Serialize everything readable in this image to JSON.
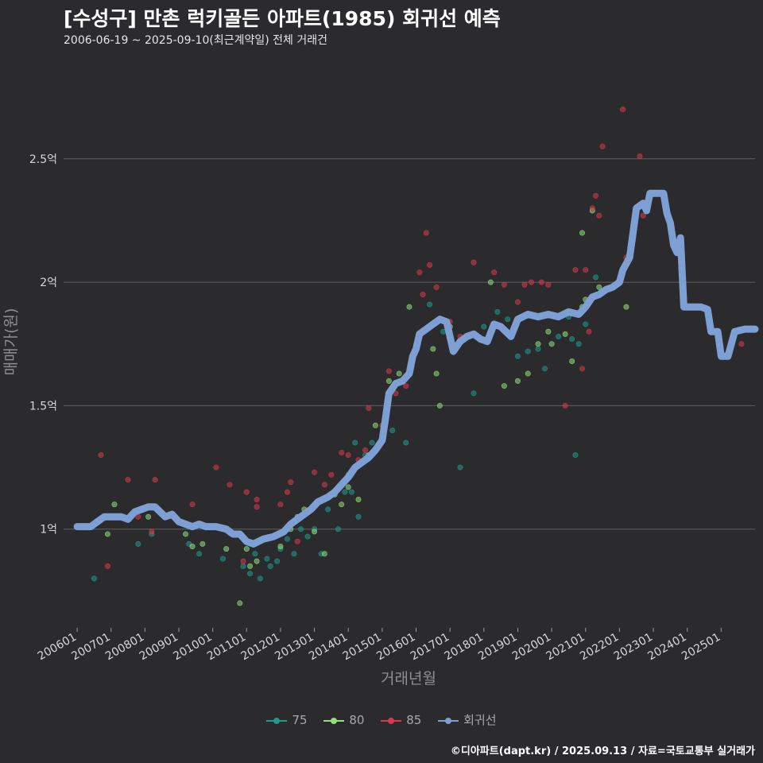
{
  "header": {
    "title": "[수성구] 만촌 럭키골든 아파트(1985) 회귀선 예측",
    "subtitle": "2006-06-19 ~ 2025-09-10(최근계약일) 전체 거래건"
  },
  "caption": "©디아파트(dapt.kr) / 2025.09.13 / 자료=국토교통부 실거래가",
  "colors": {
    "background": "#2b2a2d",
    "grid": "#5f5f5f",
    "s75": "#1f9a8f",
    "s80": "#8fe07a",
    "s85": "#d9394c",
    "regression": "#7d9fd3"
  },
  "chart_data": {
    "type": "scatter",
    "xlabel": "거래년월",
    "ylabel": "매매가(원)",
    "x_start": "2006-01",
    "x_ticks": [
      "200601",
      "200701",
      "200801",
      "200901",
      "201001",
      "201101",
      "201201",
      "201301",
      "201401",
      "201501",
      "201601",
      "201701",
      "201801",
      "201901",
      "202001",
      "202101",
      "202201",
      "202301",
      "202401",
      "202501"
    ],
    "y_ticks": [
      {
        "value": 1.0,
        "label": "1억"
      },
      {
        "value": 1.5,
        "label": "1.5억"
      },
      {
        "value": 2.0,
        "label": "2억"
      },
      {
        "value": 2.5,
        "label": "2.5억"
      }
    ],
    "ylim": [
      0.6,
      2.95
    ],
    "xlim": [
      2005.6,
      2026.0
    ],
    "grid": true,
    "legend": [
      "75",
      "80",
      "85",
      "회귀선"
    ],
    "legend_position": "bottom",
    "series": [
      {
        "name": "75",
        "points": [
          [
            2006.5,
            0.8
          ],
          [
            2007.8,
            0.94
          ],
          [
            2008.2,
            0.98
          ],
          [
            2009.3,
            0.94
          ],
          [
            2009.6,
            0.9
          ],
          [
            2010.3,
            0.88
          ],
          [
            2010.9,
            0.85
          ],
          [
            2011.1,
            0.82
          ],
          [
            2011.25,
            0.9
          ],
          [
            2011.4,
            0.8
          ],
          [
            2011.6,
            0.88
          ],
          [
            2011.7,
            0.85
          ],
          [
            2011.9,
            0.87
          ],
          [
            2012.0,
            0.92
          ],
          [
            2012.2,
            0.96
          ],
          [
            2012.4,
            0.9
          ],
          [
            2012.6,
            1.0
          ],
          [
            2012.8,
            0.97
          ],
          [
            2013.0,
            1.0
          ],
          [
            2013.2,
            0.9
          ],
          [
            2013.4,
            1.08
          ],
          [
            2013.7,
            1.0
          ],
          [
            2013.9,
            1.15
          ],
          [
            2014.0,
            1.22
          ],
          [
            2014.1,
            1.15
          ],
          [
            2014.2,
            1.35
          ],
          [
            2014.3,
            1.05
          ],
          [
            2014.5,
            1.3
          ],
          [
            2014.7,
            1.35
          ],
          [
            2015.3,
            1.4
          ],
          [
            2015.7,
            1.35
          ],
          [
            2016.4,
            1.91
          ],
          [
            2016.8,
            1.8
          ],
          [
            2017.3,
            1.25
          ],
          [
            2017.7,
            1.55
          ],
          [
            2018.0,
            1.82
          ],
          [
            2018.4,
            1.88
          ],
          [
            2018.7,
            1.85
          ],
          [
            2019.0,
            1.7
          ],
          [
            2019.3,
            1.72
          ],
          [
            2019.6,
            1.73
          ],
          [
            2019.8,
            1.65
          ],
          [
            2020.2,
            1.78
          ],
          [
            2020.5,
            1.86
          ],
          [
            2020.6,
            1.77
          ],
          [
            2020.8,
            1.75
          ],
          [
            2020.7,
            1.3
          ],
          [
            2021.0,
            1.83
          ],
          [
            2021.3,
            2.02
          ]
        ]
      },
      {
        "name": "80",
        "points": [
          [
            2007.1,
            1.1
          ],
          [
            2006.9,
            0.98
          ],
          [
            2008.1,
            1.05
          ],
          [
            2009.2,
            0.98
          ],
          [
            2009.4,
            0.93
          ],
          [
            2009.7,
            0.94
          ],
          [
            2010.4,
            0.92
          ],
          [
            2010.8,
            0.7
          ],
          [
            2011.0,
            0.92
          ],
          [
            2011.1,
            0.85
          ],
          [
            2011.3,
            0.87
          ],
          [
            2012.0,
            0.93
          ],
          [
            2012.3,
            1.0
          ],
          [
            2012.5,
            1.05
          ],
          [
            2012.7,
            1.08
          ],
          [
            2013.0,
            0.99
          ],
          [
            2013.3,
            0.9
          ],
          [
            2013.6,
            1.14
          ],
          [
            2013.8,
            1.1
          ],
          [
            2014.0,
            1.17
          ],
          [
            2014.3,
            1.12
          ],
          [
            2014.6,
            1.3
          ],
          [
            2014.8,
            1.42
          ],
          [
            2015.2,
            1.6
          ],
          [
            2015.5,
            1.63
          ],
          [
            2015.8,
            1.9
          ],
          [
            2016.5,
            1.73
          ],
          [
            2016.6,
            1.63
          ],
          [
            2016.7,
            1.5
          ],
          [
            2017.0,
            1.82
          ],
          [
            2018.2,
            2.0
          ],
          [
            2018.6,
            1.58
          ],
          [
            2019.0,
            1.6
          ],
          [
            2019.3,
            1.63
          ],
          [
            2019.6,
            1.75
          ],
          [
            2019.9,
            1.8
          ],
          [
            2020.0,
            1.75
          ],
          [
            2020.4,
            1.79
          ],
          [
            2020.6,
            1.68
          ],
          [
            2020.9,
            1.9
          ],
          [
            2020.9,
            2.2
          ],
          [
            2021.0,
            1.93
          ],
          [
            2021.2,
            2.29
          ],
          [
            2021.4,
            1.98
          ],
          [
            2022.2,
            1.9
          ],
          [
            2025.0,
            1.7
          ]
        ]
      },
      {
        "name": "85",
        "points": [
          [
            2006.7,
            1.3
          ],
          [
            2006.9,
            0.85
          ],
          [
            2007.5,
            1.2
          ],
          [
            2007.8,
            1.05
          ],
          [
            2008.2,
            0.99
          ],
          [
            2008.3,
            1.2
          ],
          [
            2009.4,
            1.1
          ],
          [
            2010.1,
            1.25
          ],
          [
            2010.5,
            1.18
          ],
          [
            2011.0,
            1.15
          ],
          [
            2010.9,
            0.87
          ],
          [
            2011.3,
            1.12
          ],
          [
            2011.3,
            1.09
          ],
          [
            2012.0,
            1.1
          ],
          [
            2012.2,
            1.15
          ],
          [
            2012.3,
            1.19
          ],
          [
            2012.5,
            0.95
          ],
          [
            2013.0,
            1.23
          ],
          [
            2013.3,
            1.18
          ],
          [
            2013.5,
            1.22
          ],
          [
            2013.8,
            1.31
          ],
          [
            2014.0,
            1.3
          ],
          [
            2014.3,
            1.28
          ],
          [
            2014.5,
            1.32
          ],
          [
            2014.6,
            1.49
          ],
          [
            2015.0,
            1.42
          ],
          [
            2015.2,
            1.64
          ],
          [
            2015.4,
            1.55
          ],
          [
            2015.7,
            1.58
          ],
          [
            2016.1,
            2.04
          ],
          [
            2016.3,
            2.2
          ],
          [
            2016.4,
            2.07
          ],
          [
            2016.6,
            1.98
          ],
          [
            2016.2,
            1.95
          ],
          [
            2017.0,
            1.84
          ],
          [
            2017.3,
            1.78
          ],
          [
            2017.7,
            2.08
          ],
          [
            2018.3,
            2.04
          ],
          [
            2018.6,
            1.99
          ],
          [
            2019.0,
            1.92
          ],
          [
            2019.2,
            1.99
          ],
          [
            2019.4,
            2.0
          ],
          [
            2019.7,
            2.0
          ],
          [
            2019.9,
            1.99
          ],
          [
            2020.4,
            1.5
          ],
          [
            2020.7,
            2.05
          ],
          [
            2020.9,
            1.65
          ],
          [
            2021.1,
            1.8
          ],
          [
            2021.0,
            2.05
          ],
          [
            2021.2,
            2.3
          ],
          [
            2021.3,
            2.35
          ],
          [
            2021.4,
            2.27
          ],
          [
            2021.5,
            2.55
          ],
          [
            2022.1,
            2.7
          ],
          [
            2022.2,
            2.1
          ],
          [
            2022.6,
            2.51
          ],
          [
            2022.7,
            2.27
          ],
          [
            2025.6,
            1.75
          ]
        ]
      },
      {
        "name": "회귀선",
        "points": [
          [
            2006.0,
            1.01
          ],
          [
            2006.4,
            1.01
          ],
          [
            2006.6,
            1.03
          ],
          [
            2006.8,
            1.05
          ],
          [
            2007.0,
            1.05
          ],
          [
            2007.3,
            1.05
          ],
          [
            2007.5,
            1.04
          ],
          [
            2007.7,
            1.07
          ],
          [
            2007.9,
            1.08
          ],
          [
            2008.1,
            1.09
          ],
          [
            2008.3,
            1.09
          ],
          [
            2008.6,
            1.05
          ],
          [
            2008.8,
            1.06
          ],
          [
            2009.0,
            1.03
          ],
          [
            2009.2,
            1.02
          ],
          [
            2009.4,
            1.01
          ],
          [
            2009.6,
            1.02
          ],
          [
            2009.8,
            1.01
          ],
          [
            2010.1,
            1.01
          ],
          [
            2010.4,
            1.0
          ],
          [
            2010.6,
            0.98
          ],
          [
            2010.8,
            0.98
          ],
          [
            2011.0,
            0.95
          ],
          [
            2011.2,
            0.94
          ],
          [
            2011.5,
            0.96
          ],
          [
            2011.8,
            0.97
          ],
          [
            2012.1,
            0.99
          ],
          [
            2012.3,
            1.02
          ],
          [
            2012.6,
            1.05
          ],
          [
            2012.9,
            1.08
          ],
          [
            2013.1,
            1.11
          ],
          [
            2013.4,
            1.13
          ],
          [
            2013.6,
            1.15
          ],
          [
            2013.8,
            1.18
          ],
          [
            2014.0,
            1.21
          ],
          [
            2014.2,
            1.25
          ],
          [
            2014.4,
            1.27
          ],
          [
            2014.6,
            1.29
          ],
          [
            2014.8,
            1.32
          ],
          [
            2015.0,
            1.36
          ],
          [
            2015.1,
            1.45
          ],
          [
            2015.2,
            1.55
          ],
          [
            2015.4,
            1.59
          ],
          [
            2015.6,
            1.6
          ],
          [
            2015.8,
            1.63
          ],
          [
            2015.9,
            1.7
          ],
          [
            2016.0,
            1.73
          ],
          [
            2016.1,
            1.79
          ],
          [
            2016.3,
            1.81
          ],
          [
            2016.5,
            1.83
          ],
          [
            2016.7,
            1.85
          ],
          [
            2016.9,
            1.84
          ],
          [
            2017.1,
            1.72
          ],
          [
            2017.3,
            1.76
          ],
          [
            2017.5,
            1.78
          ],
          [
            2017.7,
            1.79
          ],
          [
            2017.9,
            1.77
          ],
          [
            2018.1,
            1.76
          ],
          [
            2018.3,
            1.83
          ],
          [
            2018.5,
            1.82
          ],
          [
            2018.8,
            1.78
          ],
          [
            2019.0,
            1.85
          ],
          [
            2019.3,
            1.87
          ],
          [
            2019.6,
            1.86
          ],
          [
            2019.9,
            1.87
          ],
          [
            2020.2,
            1.86
          ],
          [
            2020.5,
            1.88
          ],
          [
            2020.8,
            1.87
          ],
          [
            2021.0,
            1.9
          ],
          [
            2021.2,
            1.94
          ],
          [
            2021.4,
            1.95
          ],
          [
            2021.6,
            1.97
          ],
          [
            2021.8,
            1.98
          ],
          [
            2022.0,
            2.0
          ],
          [
            2022.1,
            2.05
          ],
          [
            2022.3,
            2.1
          ],
          [
            2022.4,
            2.2
          ],
          [
            2022.5,
            2.3
          ],
          [
            2022.7,
            2.32
          ],
          [
            2022.8,
            2.29
          ],
          [
            2022.9,
            2.36
          ],
          [
            2023.1,
            2.36
          ],
          [
            2023.3,
            2.36
          ],
          [
            2023.4,
            2.28
          ],
          [
            2023.5,
            2.24
          ],
          [
            2023.6,
            2.15
          ],
          [
            2023.7,
            2.12
          ],
          [
            2023.8,
            2.18
          ],
          [
            2023.9,
            1.9
          ],
          [
            2024.1,
            1.9
          ],
          [
            2024.4,
            1.9
          ],
          [
            2024.6,
            1.89
          ],
          [
            2024.7,
            1.8
          ],
          [
            2024.9,
            1.8
          ],
          [
            2025.0,
            1.7
          ],
          [
            2025.2,
            1.7
          ],
          [
            2025.4,
            1.8
          ],
          [
            2025.7,
            1.81
          ],
          [
            2026.0,
            1.81
          ]
        ]
      }
    ]
  }
}
